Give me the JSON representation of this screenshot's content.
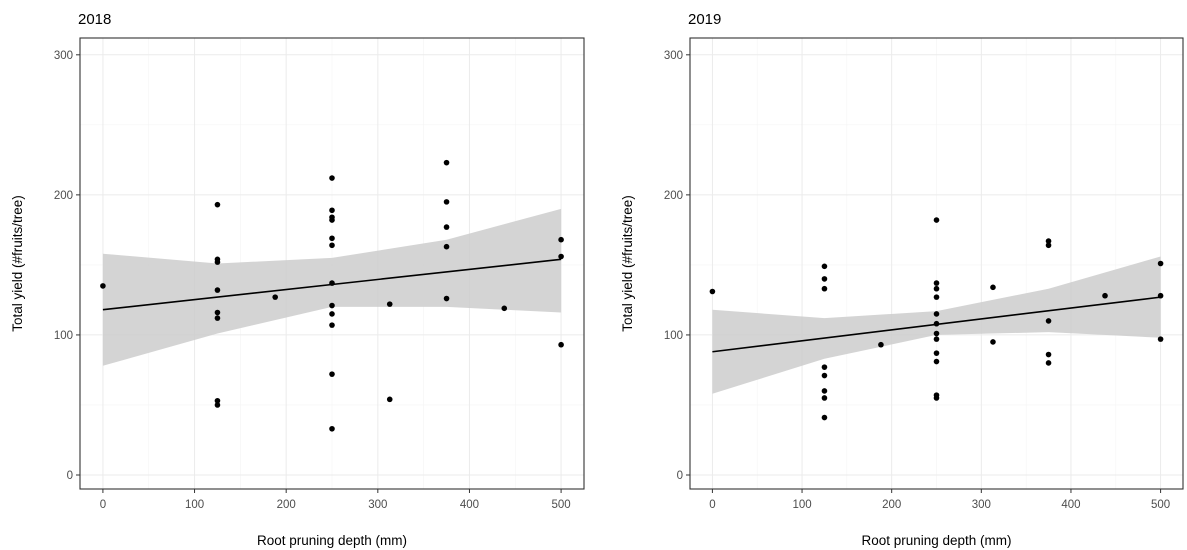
{
  "chart_data": [
    {
      "type": "scatter",
      "title": "2018",
      "xlabel": "Root pruning depth (mm)",
      "ylabel": "Total yield (#fruits/tree)",
      "xlim": [
        -25,
        525
      ],
      "ylim": [
        -10,
        312
      ],
      "xticks": [
        0,
        100,
        200,
        300,
        400,
        500
      ],
      "yticks": [
        0,
        100,
        200,
        300
      ],
      "grid": true,
      "points": [
        [
          0,
          135
        ],
        [
          125,
          193
        ],
        [
          125,
          154
        ],
        [
          125,
          152
        ],
        [
          125,
          132
        ],
        [
          125,
          116
        ],
        [
          125,
          112
        ],
        [
          125,
          53
        ],
        [
          125,
          50
        ],
        [
          188,
          127
        ],
        [
          250,
          212
        ],
        [
          250,
          189
        ],
        [
          250,
          184
        ],
        [
          250,
          182
        ],
        [
          250,
          169
        ],
        [
          250,
          164
        ],
        [
          250,
          137
        ],
        [
          250,
          121
        ],
        [
          250,
          115
        ],
        [
          250,
          107
        ],
        [
          250,
          72
        ],
        [
          250,
          33
        ],
        [
          313,
          122
        ],
        [
          313,
          54
        ],
        [
          375,
          223
        ],
        [
          375,
          195
        ],
        [
          375,
          177
        ],
        [
          375,
          163
        ],
        [
          375,
          126
        ],
        [
          438,
          119
        ],
        [
          500,
          168
        ],
        [
          500,
          156
        ],
        [
          500,
          93
        ]
      ],
      "fit": {
        "x0": 0,
        "y0": 118,
        "x1": 500,
        "y1": 154
      },
      "ribbon": {
        "x": [
          0,
          125,
          250,
          375,
          500
        ],
        "lower": [
          78,
          101,
          120,
          120,
          116
        ],
        "upper": [
          158,
          151,
          155,
          168,
          190
        ]
      }
    },
    {
      "type": "scatter",
      "title": "2019",
      "xlabel": "Root pruning depth (mm)",
      "ylabel": "Total yield (#fruits/tree)",
      "xlim": [
        -25,
        525
      ],
      "ylim": [
        -10,
        312
      ],
      "xticks": [
        0,
        100,
        200,
        300,
        400,
        500
      ],
      "yticks": [
        0,
        100,
        200,
        300
      ],
      "grid": true,
      "points": [
        [
          0,
          131
        ],
        [
          125,
          149
        ],
        [
          125,
          140
        ],
        [
          125,
          133
        ],
        [
          125,
          77
        ],
        [
          125,
          71
        ],
        [
          125,
          60
        ],
        [
          125,
          55
        ],
        [
          125,
          41
        ],
        [
          188,
          93
        ],
        [
          250,
          182
        ],
        [
          250,
          137
        ],
        [
          250,
          133
        ],
        [
          250,
          127
        ],
        [
          250,
          115
        ],
        [
          250,
          108
        ],
        [
          250,
          101
        ],
        [
          250,
          97
        ],
        [
          250,
          87
        ],
        [
          250,
          81
        ],
        [
          250,
          57
        ],
        [
          250,
          55
        ],
        [
          313,
          134
        ],
        [
          313,
          95
        ],
        [
          375,
          167
        ],
        [
          375,
          164
        ],
        [
          375,
          110
        ],
        [
          375,
          86
        ],
        [
          375,
          80
        ],
        [
          438,
          128
        ],
        [
          500,
          151
        ],
        [
          500,
          128
        ],
        [
          500,
          97
        ]
      ],
      "fit": {
        "x0": 0,
        "y0": 88,
        "x1": 500,
        "y1": 127
      },
      "ribbon": {
        "x": [
          0,
          125,
          250,
          375,
          500
        ],
        "lower": [
          58,
          83,
          100,
          102,
          98
        ],
        "upper": [
          118,
          112,
          117,
          133,
          156
        ]
      }
    }
  ]
}
